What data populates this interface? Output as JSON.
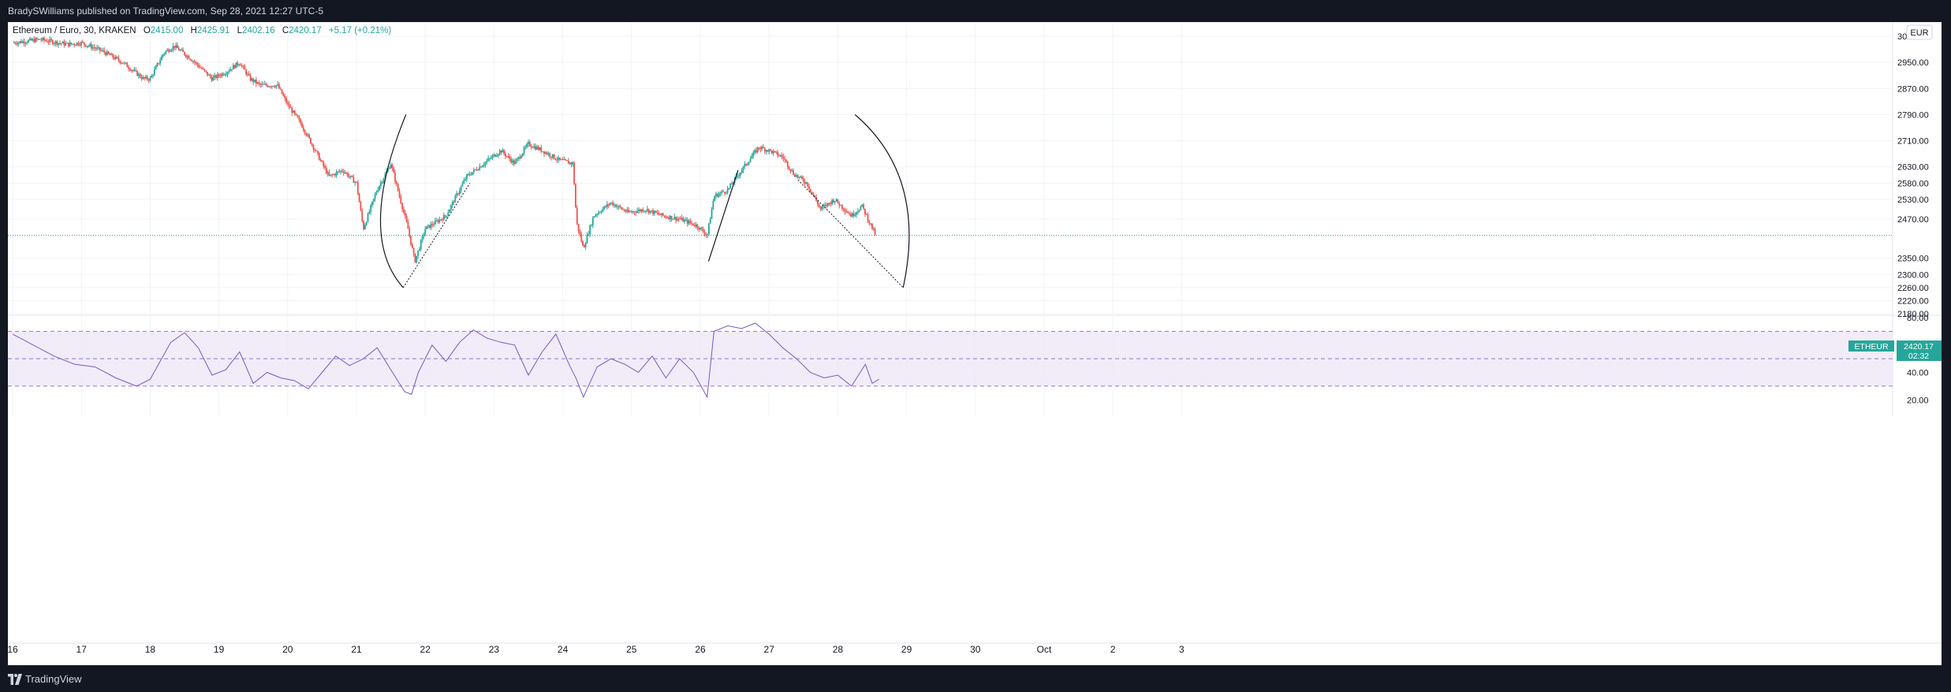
{
  "header": {
    "published_text": "BradySWilliams published on TradingView.com, Sep 28, 2021 12:27 UTC-5"
  },
  "footer": {
    "logo_text": "TradingView"
  },
  "legend": {
    "symbol": "Ethereum / Euro, 30, KRAKEN",
    "open_label": "O",
    "open": "2415.00",
    "high_label": "H",
    "high": "2425.91",
    "low_label": "L",
    "low": "2402.16",
    "close_label": "C",
    "close": "2420.17",
    "change": "+5.17 (+0.21%)"
  },
  "currency_button": "EUR",
  "price_tag": {
    "symbol": "ETHEUR",
    "price": "2420.17",
    "countdown": "02:32"
  },
  "colors": {
    "up": "#26a69a",
    "down": "#ef5350",
    "rsi_line": "#7e57c2",
    "rsi_band": "#ede7f6",
    "price_line": "#26a69a",
    "grid": "#f0f3fa",
    "drawing": "#131722"
  },
  "chart_data": [
    {
      "type": "candlestick",
      "timeframe": "30",
      "symbol": "ETHEUR",
      "x_ticks": [
        "16",
        "17",
        "18",
        "19",
        "20",
        "21",
        "22",
        "23",
        "24",
        "25",
        "26",
        "27",
        "28",
        "29",
        "30",
        "Oct",
        "2",
        "3"
      ],
      "y_ticks": [
        "2180.00",
        "2220.00",
        "2260.00",
        "2300.00",
        "2350.00",
        "2470.00",
        "2530.00",
        "2580.00",
        "2630.00",
        "2710.00",
        "2790.00",
        "2870.00",
        "2950.00",
        "3030.00"
      ],
      "ylim": [
        2180,
        3030
      ],
      "last_price": 2420.17,
      "series": [
        {
          "name": "ETHEUR",
          "path_points": [
            [
              16.0,
              3010
            ],
            [
              16.4,
              3020
            ],
            [
              16.8,
              3005
            ],
            [
              17.0,
              3010
            ],
            [
              17.3,
              2985
            ],
            [
              17.6,
              2950
            ],
            [
              17.9,
              2900
            ],
            [
              18.0,
              2900
            ],
            [
              18.2,
              2980
            ],
            [
              18.35,
              3000
            ],
            [
              18.6,
              2960
            ],
            [
              18.9,
              2900
            ],
            [
              19.1,
              2920
            ],
            [
              19.3,
              2950
            ],
            [
              19.45,
              2900
            ],
            [
              19.6,
              2880
            ],
            [
              19.85,
              2880
            ],
            [
              20.0,
              2820
            ],
            [
              20.2,
              2760
            ],
            [
              20.45,
              2660
            ],
            [
              20.6,
              2600
            ],
            [
              20.8,
              2620
            ],
            [
              21.0,
              2580
            ],
            [
              21.1,
              2440
            ],
            [
              21.3,
              2560
            ],
            [
              21.5,
              2640
            ],
            [
              21.6,
              2560
            ],
            [
              21.75,
              2440
            ],
            [
              21.85,
              2340
            ],
            [
              22.0,
              2440
            ],
            [
              22.3,
              2480
            ],
            [
              22.6,
              2600
            ],
            [
              22.85,
              2640
            ],
            [
              23.1,
              2680
            ],
            [
              23.3,
              2640
            ],
            [
              23.5,
              2700
            ],
            [
              23.7,
              2680
            ],
            [
              23.95,
              2650
            ],
            [
              24.15,
              2640
            ],
            [
              24.2,
              2460
            ],
            [
              24.3,
              2380
            ],
            [
              24.45,
              2480
            ],
            [
              24.7,
              2520
            ],
            [
              24.95,
              2490
            ],
            [
              25.2,
              2500
            ],
            [
              25.45,
              2480
            ],
            [
              25.7,
              2470
            ],
            [
              25.95,
              2450
            ],
            [
              26.1,
              2420
            ],
            [
              26.2,
              2540
            ],
            [
              26.4,
              2560
            ],
            [
              26.6,
              2620
            ],
            [
              26.85,
              2690
            ],
            [
              27.0,
              2680
            ],
            [
              27.2,
              2660
            ],
            [
              27.35,
              2610
            ],
            [
              27.55,
              2580
            ],
            [
              27.75,
              2500
            ],
            [
              27.95,
              2530
            ],
            [
              28.2,
              2480
            ],
            [
              28.35,
              2510
            ],
            [
              28.55,
              2420
            ]
          ]
        }
      ]
    },
    {
      "type": "line",
      "name": "RSI",
      "y_ticks": [
        "20.00",
        "40.00",
        "60.00",
        "80.00"
      ],
      "ylim": [
        15,
        80
      ],
      "bands": [
        30,
        50,
        70
      ],
      "x": [
        16.0,
        16.3,
        16.6,
        16.9,
        17.2,
        17.5,
        17.8,
        18.0,
        18.1,
        18.3,
        18.5,
        18.7,
        18.9,
        19.1,
        19.3,
        19.5,
        19.7,
        19.9,
        20.1,
        20.3,
        20.5,
        20.7,
        20.9,
        21.1,
        21.3,
        21.5,
        21.7,
        21.8,
        21.9,
        22.1,
        22.3,
        22.5,
        22.7,
        22.9,
        23.1,
        23.3,
        23.5,
        23.7,
        23.9,
        24.1,
        24.2,
        24.3,
        24.5,
        24.7,
        24.9,
        25.1,
        25.3,
        25.5,
        25.7,
        25.9,
        26.1,
        26.2,
        26.4,
        26.6,
        26.8,
        27.0,
        27.2,
        27.4,
        27.6,
        27.8,
        28.0,
        28.2,
        28.4,
        28.5,
        28.6
      ],
      "values": [
        68,
        60,
        52,
        46,
        44,
        36,
        30,
        35,
        44,
        62,
        69,
        58,
        38,
        42,
        55,
        32,
        40,
        36,
        34,
        28,
        40,
        52,
        45,
        50,
        58,
        42,
        26,
        24,
        40,
        60,
        48,
        62,
        71,
        65,
        62,
        60,
        38,
        55,
        68,
        45,
        35,
        22,
        44,
        50,
        46,
        40,
        52,
        36,
        50,
        40,
        22,
        70,
        74,
        72,
        76,
        68,
        58,
        50,
        40,
        36,
        38,
        30,
        46,
        32,
        35
      ]
    }
  ],
  "annotations": {
    "drawn_lines": "cup arcs and dotted trend lines"
  }
}
